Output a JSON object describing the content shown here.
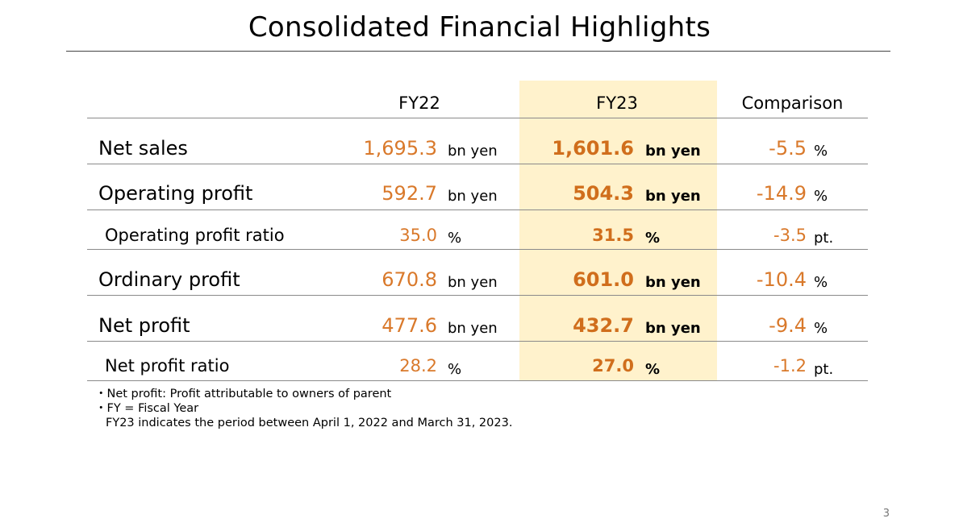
{
  "title": "Consolidated Financial Highlights",
  "headers": {
    "fy22": "FY22",
    "fy23": "FY23",
    "comparison": "Comparison"
  },
  "rows": [
    {
      "label": "Net sales",
      "fy22": "1,695.3",
      "fy22_unit": "bn yen",
      "fy23": "1,601.6",
      "fy23_unit": "bn yen",
      "cmp": "-5.5",
      "cmp_unit": "%"
    },
    {
      "label": "Operating profit",
      "fy22": "592.7",
      "fy22_unit": "bn yen",
      "fy23": "504.3",
      "fy23_unit": "bn yen",
      "cmp": "-14.9",
      "cmp_unit": "%"
    },
    {
      "label": "Operating profit ratio",
      "fy22": "35.0",
      "fy22_unit": "%",
      "fy23": "31.5",
      "fy23_unit": "%",
      "cmp": "-3.5",
      "cmp_unit": "pt."
    },
    {
      "label": "Ordinary profit",
      "fy22": "670.8",
      "fy22_unit": "bn yen",
      "fy23": "601.0",
      "fy23_unit": "bn yen",
      "cmp": "-10.4",
      "cmp_unit": "%"
    },
    {
      "label": "Net profit",
      "fy22": "477.6",
      "fy22_unit": "bn yen",
      "fy23": "432.7",
      "fy23_unit": "bn yen",
      "cmp": "-9.4",
      "cmp_unit": "%"
    },
    {
      "label": "Net profit ratio",
      "fy22": "28.2",
      "fy22_unit": "%",
      "fy23": "27.0",
      "fy23_unit": "%",
      "cmp": "-1.2",
      "cmp_unit": "pt."
    }
  ],
  "notes": [
    "・Net profit: Profit attributable to owners of parent",
    "・FY = Fiscal Year",
    "FY23 indicates the period between April 1, 2022 and March 31, 2023."
  ],
  "page_number": "3",
  "colors": {
    "value_orange": "#d9792b",
    "fy23_highlight": "#fff2cc"
  }
}
